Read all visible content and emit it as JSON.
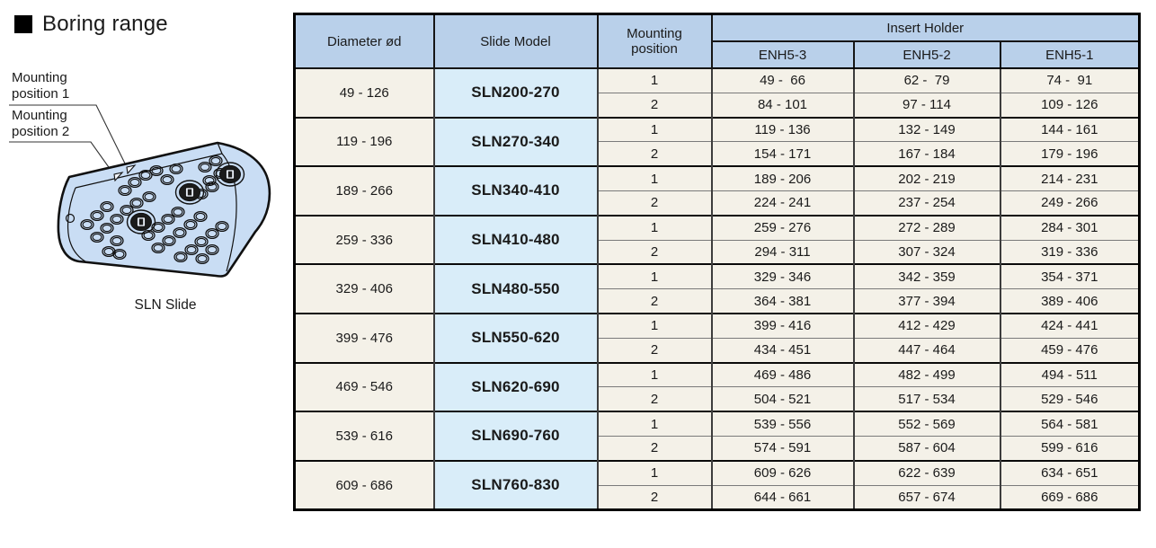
{
  "left_panel": {
    "title": "Boring range",
    "mounting_label_1": "Mounting\nposition 1",
    "mounting_label_2": "Mounting\nposition 2",
    "caption": "SLN Slide"
  },
  "table": {
    "headers": {
      "diameter": "Diameter ød",
      "model": "Slide Model",
      "mounting": "Mounting\nposition",
      "insert_holder": "Insert Holder",
      "enh": [
        "ENH5-3",
        "ENH5-2",
        "ENH5-1"
      ]
    },
    "groups": [
      {
        "diameter": "49 - 126",
        "model": "SLN200-270",
        "rows": [
          {
            "pos": "1",
            "enh3": "49 -  66",
            "enh2": "62 -  79",
            "enh1": "74 -  91"
          },
          {
            "pos": "2",
            "enh3": "84 - 101",
            "enh2": "97 - 114",
            "enh1": "109 - 126"
          }
        ]
      },
      {
        "diameter": "119 - 196",
        "model": "SLN270-340",
        "rows": [
          {
            "pos": "1",
            "enh3": "119 - 136",
            "enh2": "132 - 149",
            "enh1": "144 - 161"
          },
          {
            "pos": "2",
            "enh3": "154 - 171",
            "enh2": "167 - 184",
            "enh1": "179 - 196"
          }
        ]
      },
      {
        "diameter": "189 - 266",
        "model": "SLN340-410",
        "rows": [
          {
            "pos": "1",
            "enh3": "189 - 206",
            "enh2": "202 - 219",
            "enh1": "214 - 231"
          },
          {
            "pos": "2",
            "enh3": "224 - 241",
            "enh2": "237 - 254",
            "enh1": "249 - 266"
          }
        ]
      },
      {
        "diameter": "259 - 336",
        "model": "SLN410-480",
        "rows": [
          {
            "pos": "1",
            "enh3": "259 - 276",
            "enh2": "272 - 289",
            "enh1": "284 - 301"
          },
          {
            "pos": "2",
            "enh3": "294 - 311",
            "enh2": "307 - 324",
            "enh1": "319 - 336"
          }
        ]
      },
      {
        "diameter": "329 - 406",
        "model": "SLN480-550",
        "rows": [
          {
            "pos": "1",
            "enh3": "329 - 346",
            "enh2": "342 - 359",
            "enh1": "354 - 371"
          },
          {
            "pos": "2",
            "enh3": "364 - 381",
            "enh2": "377 - 394",
            "enh1": "389 - 406"
          }
        ]
      },
      {
        "diameter": "399 - 476",
        "model": "SLN550-620",
        "rows": [
          {
            "pos": "1",
            "enh3": "399 - 416",
            "enh2": "412 - 429",
            "enh1": "424 - 441"
          },
          {
            "pos": "2",
            "enh3": "434 - 451",
            "enh2": "447 - 464",
            "enh1": "459 - 476"
          }
        ]
      },
      {
        "diameter": "469 - 546",
        "model": "SLN620-690",
        "rows": [
          {
            "pos": "1",
            "enh3": "469 - 486",
            "enh2": "482 - 499",
            "enh1": "494 - 511"
          },
          {
            "pos": "2",
            "enh3": "504 - 521",
            "enh2": "517 - 534",
            "enh1": "529 - 546"
          }
        ]
      },
      {
        "diameter": "539 - 616",
        "model": "SLN690-760",
        "rows": [
          {
            "pos": "1",
            "enh3": "539 - 556",
            "enh2": "552 - 569",
            "enh1": "564 - 581"
          },
          {
            "pos": "2",
            "enh3": "574 - 591",
            "enh2": "587 - 604",
            "enh1": "599 - 616"
          }
        ]
      },
      {
        "diameter": "609 - 686",
        "model": "SLN760-830",
        "rows": [
          {
            "pos": "1",
            "enh3": "609 - 626",
            "enh2": "622 - 639",
            "enh1": "634 - 651"
          },
          {
            "pos": "2",
            "enh3": "644 - 661",
            "enh2": "657 - 674",
            "enh1": "669 - 686"
          }
        ]
      }
    ]
  },
  "colors": {
    "header_bg": "#b9d0ea",
    "model_bg": "#d9edf9",
    "body_bg": "#f4f1e8",
    "block_fill": "#c9ddf4",
    "line": "#111111"
  }
}
